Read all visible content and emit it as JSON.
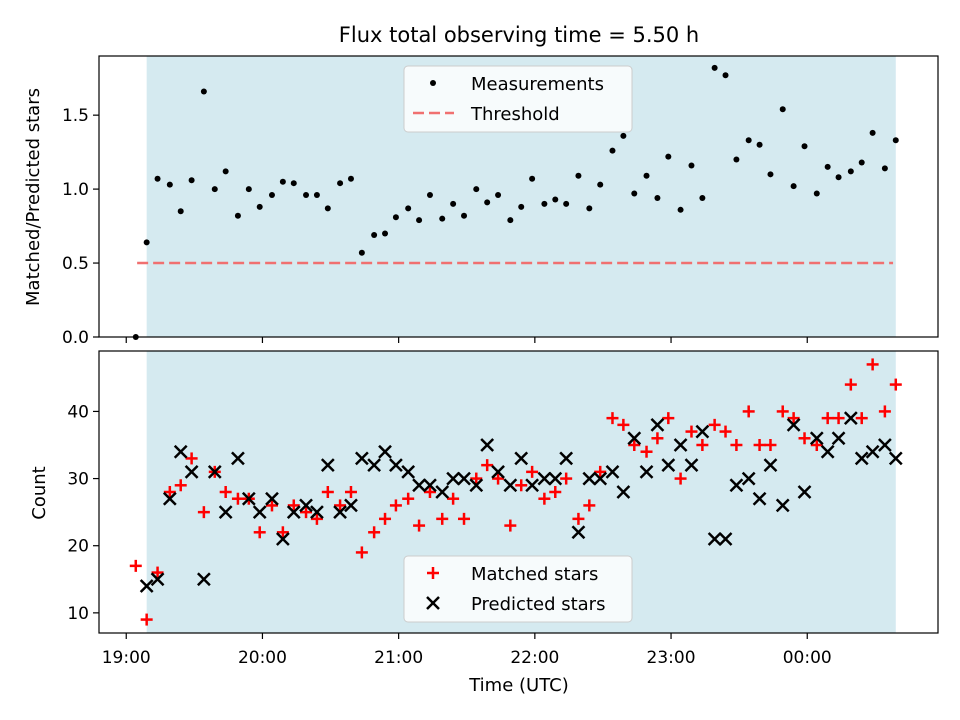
{
  "chart_data": [
    {
      "type": "scatter",
      "title": "Flux total observing time = 5.50 h",
      "xlabel": "",
      "ylabel": "Matched/Predicted stars",
      "yticks": [
        "0.0",
        "0.5",
        "1.0",
        "1.5"
      ],
      "ylim": [
        0,
        1.9
      ],
      "xlim": [
        18.8,
        24.96
      ],
      "shaded_interval": [
        19.15,
        24.65
      ],
      "shade_color": "#d5eaf0",
      "threshold": {
        "value": 0.5,
        "x_range": [
          19.08,
          24.63
        ],
        "color": "#f07070"
      },
      "legend": {
        "position": "upper center",
        "items": [
          "Measurements",
          "Threshold"
        ]
      },
      "series": [
        {
          "name": "Measurements",
          "color": "#000000",
          "x": [
            19.07,
            19.15,
            19.23,
            19.32,
            19.4,
            19.48,
            19.57,
            19.65,
            19.73,
            19.82,
            19.9,
            19.98,
            20.07,
            20.15,
            20.23,
            20.32,
            20.4,
            20.48,
            20.57,
            20.65,
            20.73,
            20.82,
            20.9,
            20.98,
            21.07,
            21.15,
            21.23,
            21.32,
            21.4,
            21.48,
            21.57,
            21.65,
            21.73,
            21.82,
            21.9,
            21.98,
            22.07,
            22.15,
            22.23,
            22.32,
            22.4,
            22.48,
            22.57,
            22.65,
            22.73,
            22.82,
            22.9,
            22.98,
            23.07,
            23.15,
            23.23,
            23.32,
            23.4,
            23.48,
            23.57,
            23.65,
            23.73,
            23.82,
            23.9,
            23.98,
            24.07,
            24.15,
            24.23,
            24.32,
            24.4,
            24.48,
            24.57,
            24.65
          ],
          "y": [
            0.0,
            0.64,
            1.07,
            1.03,
            0.85,
            1.06,
            1.66,
            1.0,
            1.12,
            0.82,
            1.0,
            0.88,
            0.96,
            1.05,
            1.04,
            0.96,
            0.96,
            0.87,
            1.04,
            1.07,
            0.57,
            0.69,
            0.7,
            0.81,
            0.87,
            0.79,
            0.96,
            0.8,
            0.9,
            0.82,
            1.0,
            0.91,
            0.96,
            0.79,
            0.88,
            1.07,
            0.9,
            0.93,
            0.9,
            1.09,
            0.87,
            1.03,
            1.26,
            1.36,
            0.97,
            1.09,
            0.94,
            1.22,
            0.86,
            1.16,
            0.94,
            1.82,
            1.77,
            1.2,
            1.33,
            1.3,
            1.1,
            1.54,
            1.02,
            1.29,
            0.97,
            1.15,
            1.08,
            1.12,
            1.18,
            1.38,
            1.14,
            1.33
          ]
        }
      ]
    },
    {
      "type": "scatter",
      "title": "",
      "xlabel": "Time (UTC)",
      "ylabel": "Count",
      "xticks": [
        "19:00",
        "20:00",
        "21:00",
        "22:00",
        "23:00",
        "00:00"
      ],
      "yticks": [
        "10",
        "20",
        "30",
        "40"
      ],
      "ylim": [
        7,
        49
      ],
      "xlim": [
        18.8,
        24.96
      ],
      "shaded_interval": [
        19.15,
        24.65
      ],
      "shade_color": "#d5eaf0",
      "legend": {
        "position": "lower center",
        "items": [
          "Matched stars",
          "Predicted stars"
        ]
      },
      "series": [
        {
          "name": "Matched stars",
          "marker": "+",
          "color": "#ff0000",
          "x": [
            19.07,
            19.15,
            19.23,
            19.32,
            19.4,
            19.48,
            19.57,
            19.65,
            19.73,
            19.82,
            19.9,
            19.98,
            20.07,
            20.15,
            20.23,
            20.32,
            20.4,
            20.48,
            20.57,
            20.65,
            20.73,
            20.82,
            20.9,
            20.98,
            21.07,
            21.15,
            21.23,
            21.32,
            21.4,
            21.48,
            21.57,
            21.65,
            21.73,
            21.82,
            21.9,
            21.98,
            22.07,
            22.15,
            22.23,
            22.32,
            22.4,
            22.48,
            22.57,
            22.65,
            22.73,
            22.82,
            22.9,
            22.98,
            23.07,
            23.15,
            23.23,
            23.32,
            23.4,
            23.48,
            23.57,
            23.65,
            23.73,
            23.82,
            23.9,
            23.98,
            24.07,
            24.15,
            24.23,
            24.32,
            24.4,
            24.48,
            24.57,
            24.65
          ],
          "y": [
            17,
            9,
            16,
            28,
            29,
            33,
            25,
            31,
            28,
            27,
            27,
            22,
            26,
            22,
            26,
            25,
            24,
            28,
            26,
            28,
            19,
            22,
            24,
            26,
            27,
            23,
            28,
            24,
            27,
            24,
            30,
            32,
            30,
            23,
            29,
            31,
            27,
            28,
            30,
            24,
            26,
            31,
            39,
            38,
            35,
            34,
            36,
            39,
            30,
            37,
            35,
            38,
            37,
            35,
            40,
            35,
            35,
            40,
            39,
            36,
            35,
            39,
            39,
            44,
            39,
            47,
            40,
            44
          ]
        },
        {
          "name": "Predicted stars",
          "marker": "x",
          "color": "#000000",
          "x": [
            19.15,
            19.23,
            19.32,
            19.4,
            19.48,
            19.57,
            19.65,
            19.73,
            19.82,
            19.9,
            19.98,
            20.07,
            20.15,
            20.23,
            20.32,
            20.4,
            20.48,
            20.57,
            20.65,
            20.73,
            20.82,
            20.9,
            20.98,
            21.07,
            21.15,
            21.23,
            21.32,
            21.4,
            21.48,
            21.57,
            21.65,
            21.73,
            21.82,
            21.9,
            21.98,
            22.07,
            22.15,
            22.23,
            22.32,
            22.4,
            22.48,
            22.57,
            22.65,
            22.73,
            22.82,
            22.9,
            22.98,
            23.07,
            23.15,
            23.23,
            23.32,
            23.4,
            23.48,
            23.57,
            23.65,
            23.73,
            23.82,
            23.9,
            23.98,
            24.07,
            24.15,
            24.23,
            24.32,
            24.4,
            24.48,
            24.57,
            24.65
          ],
          "y": [
            14,
            15,
            27,
            34,
            31,
            15,
            31,
            25,
            33,
            27,
            25,
            27,
            21,
            25,
            26,
            25,
            32,
            25,
            26,
            33,
            32,
            34,
            32,
            31,
            29,
            29,
            28,
            30,
            30,
            29,
            35,
            31,
            29,
            33,
            29,
            30,
            30,
            33,
            22,
            30,
            30,
            31,
            28,
            36,
            31,
            38,
            32,
            35,
            32,
            37,
            21,
            21,
            29,
            30,
            27,
            32,
            26,
            38,
            28,
            36,
            34,
            36,
            39,
            33,
            34,
            35,
            33
          ]
        }
      ]
    }
  ]
}
